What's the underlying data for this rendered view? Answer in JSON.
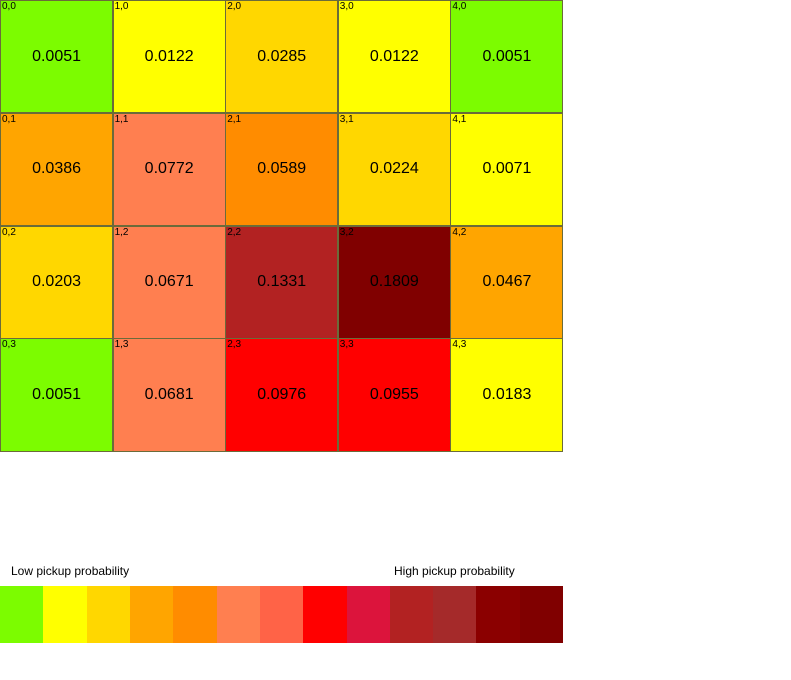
{
  "chart_data": {
    "type": "heatmap",
    "columns": 5,
    "rows": 4,
    "cells": [
      {
        "coord": "0,0",
        "value": "0.0051",
        "color": "#7cfc00"
      },
      {
        "coord": "1,0",
        "value": "0.0122",
        "color": "#ffff00"
      },
      {
        "coord": "2,0",
        "value": "0.0285",
        "color": "#ffd700"
      },
      {
        "coord": "3,0",
        "value": "0.0122",
        "color": "#ffff00"
      },
      {
        "coord": "4,0",
        "value": "0.0051",
        "color": "#7cfc00"
      },
      {
        "coord": "0,1",
        "value": "0.0386",
        "color": "#ffa500"
      },
      {
        "coord": "1,1",
        "value": "0.0772",
        "color": "#ff7f50"
      },
      {
        "coord": "2,1",
        "value": "0.0589",
        "color": "#ff8c00"
      },
      {
        "coord": "3,1",
        "value": "0.0224",
        "color": "#ffd700"
      },
      {
        "coord": "4,1",
        "value": "0.0071",
        "color": "#ffff00"
      },
      {
        "coord": "0,2",
        "value": "0.0203",
        "color": "#ffd700"
      },
      {
        "coord": "1,2",
        "value": "0.0671",
        "color": "#ff7f50"
      },
      {
        "coord": "2,2",
        "value": "0.1331",
        "color": "#b22222"
      },
      {
        "coord": "3,2",
        "value": "0.1809",
        "color": "#800000"
      },
      {
        "coord": "4,2",
        "value": "0.0467",
        "color": "#ffa500"
      },
      {
        "coord": "0,3",
        "value": "0.0051",
        "color": "#7cfc00"
      },
      {
        "coord": "1,3",
        "value": "0.0681",
        "color": "#ff7f50"
      },
      {
        "coord": "2,3",
        "value": "0.0976",
        "color": "#ff0000"
      },
      {
        "coord": "3,3",
        "value": "0.0955",
        "color": "#ff0000"
      },
      {
        "coord": "4,3",
        "value": "0.0183",
        "color": "#ffff00"
      }
    ]
  },
  "legend": {
    "low_label": "Low pickup probability",
    "high_label": "High pickup probability",
    "colors": [
      "#7cfc00",
      "#ffff00",
      "#ffd700",
      "#ffa500",
      "#ff8c00",
      "#ff7f50",
      "#ff6347",
      "#ff0000",
      "#dc143c",
      "#b22222",
      "#a52a2a",
      "#8b0000",
      "#800000"
    ]
  }
}
